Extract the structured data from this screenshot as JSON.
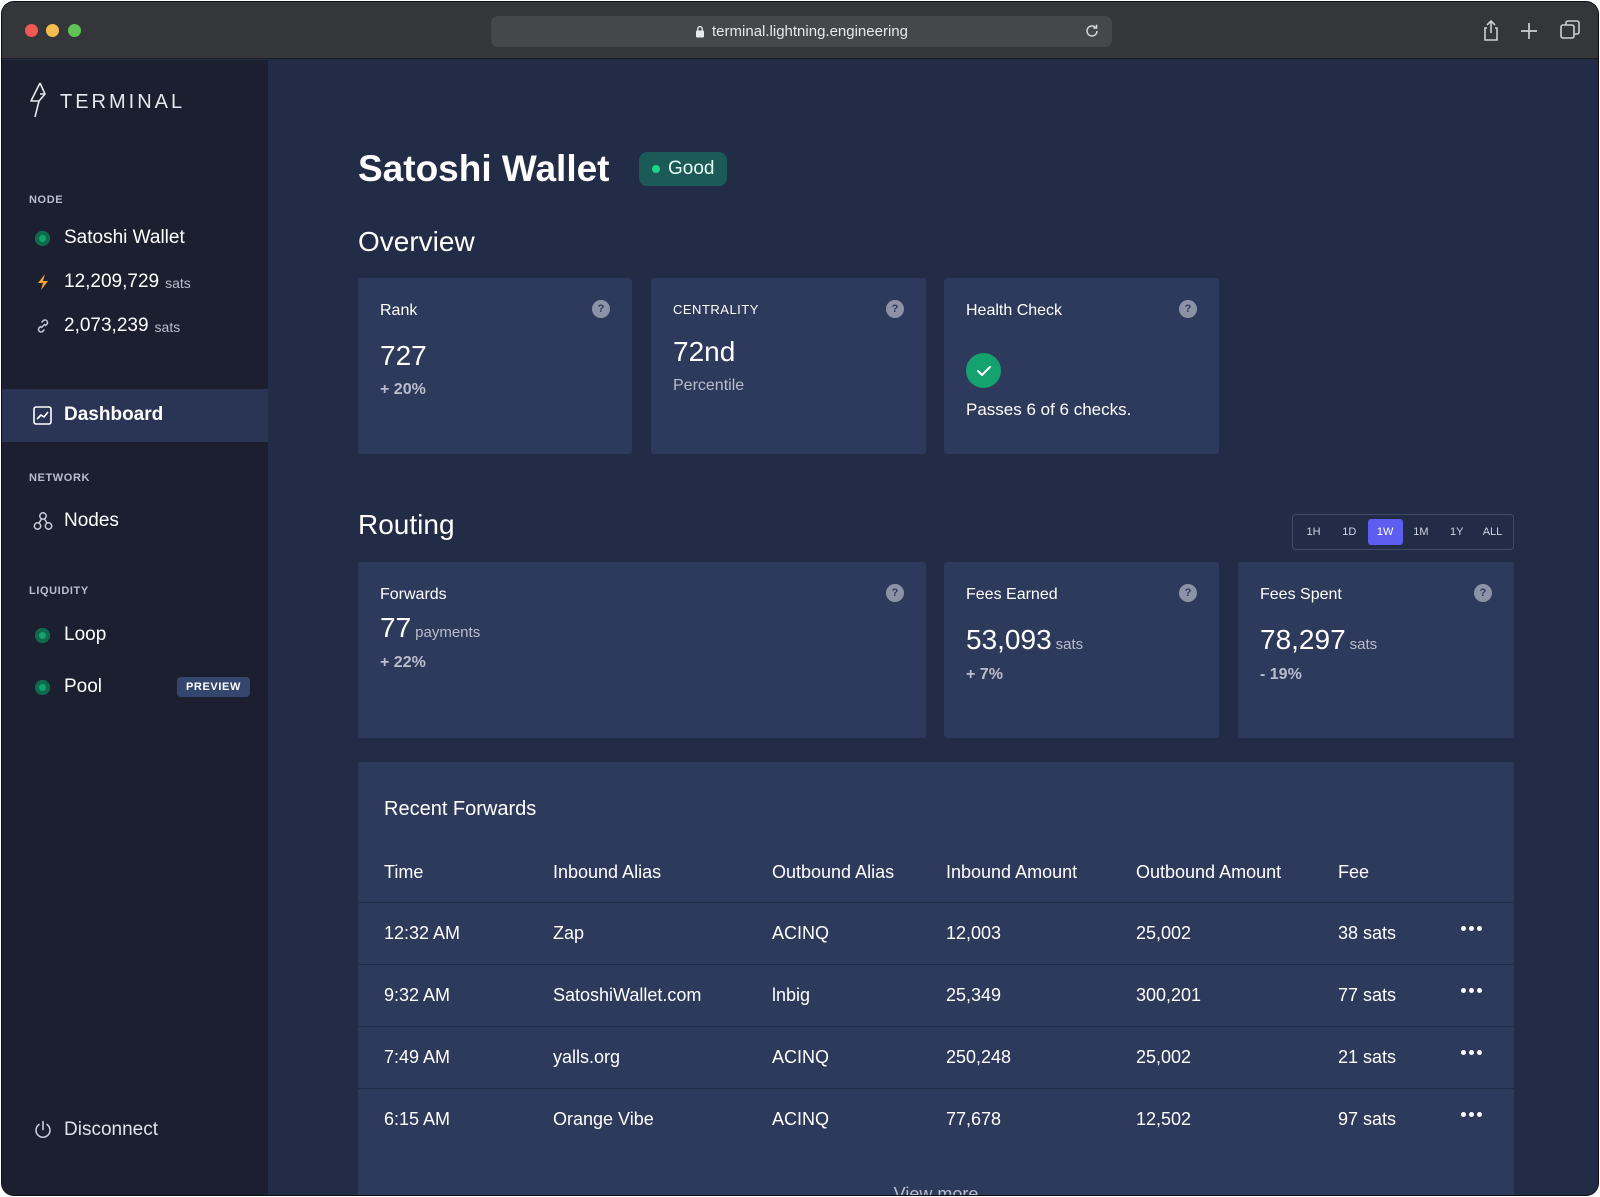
{
  "browser": {
    "url": "terminal.lightning.engineering"
  },
  "sidebar": {
    "brand": "TERMINAL",
    "node_section": "NODE",
    "node_name": "Satoshi Wallet",
    "balance_value": "12,209,729",
    "balance_unit": "sats",
    "channel_value": "2,073,239",
    "channel_unit": "sats",
    "dashboard_label": "Dashboard",
    "network_section": "NETWORK",
    "nodes_label": "Nodes",
    "liquidity_section": "LIQUIDITY",
    "loop_label": "Loop",
    "pool_label": "Pool",
    "pool_badge": "PREVIEW",
    "disconnect_label": "Disconnect"
  },
  "header": {
    "title": "Satoshi Wallet",
    "status": "Good"
  },
  "overview": {
    "heading": "Overview",
    "rank": {
      "label": "Rank",
      "value": "727",
      "change": "+ 20%"
    },
    "centrality": {
      "label": "CENTRALITY",
      "value": "72nd",
      "sub": "Percentile"
    },
    "health": {
      "label": "Health Check",
      "sub": "Passes 6 of 6 checks."
    }
  },
  "routing": {
    "heading": "Routing",
    "ranges": [
      "1H",
      "1D",
      "1W",
      "1M",
      "1Y",
      "ALL"
    ],
    "active_range": "1W",
    "forwards": {
      "label": "Forwards",
      "value": "77",
      "unit": "payments",
      "change": "+ 22%"
    },
    "fees_earned": {
      "label": "Fees Earned",
      "value": "53,093",
      "unit": "sats",
      "change": "+ 7%"
    },
    "fees_spent": {
      "label": "Fees Spent",
      "value": "78,297",
      "unit": "sats",
      "change": "- 19%"
    }
  },
  "recent_forwards": {
    "title": "Recent Forwards",
    "columns": [
      "Time",
      "Inbound Alias",
      "Outbound Alias",
      "Inbound Amount",
      "Outbound Amount",
      "Fee"
    ],
    "rows": [
      [
        "12:32 AM",
        "Zap",
        "ACINQ",
        "12,003",
        "25,002",
        "38 sats"
      ],
      [
        "9:32 AM",
        "SatoshiWallet.com",
        "lnbig",
        "25,349",
        "300,201",
        "77 sats"
      ],
      [
        "7:49 AM",
        "yalls.org",
        "ACINQ",
        "250,248",
        "25,002",
        "21 sats"
      ],
      [
        "6:15 AM",
        "Orange Vibe",
        "ACINQ",
        "77,678",
        "12,502",
        "97 sats"
      ]
    ],
    "view_more": "View more"
  },
  "colors": {
    "positive": "#1fcf88",
    "negative": "#ef4a4a",
    "accent": "#5d5ef0",
    "status_ok": "#14a36f"
  }
}
